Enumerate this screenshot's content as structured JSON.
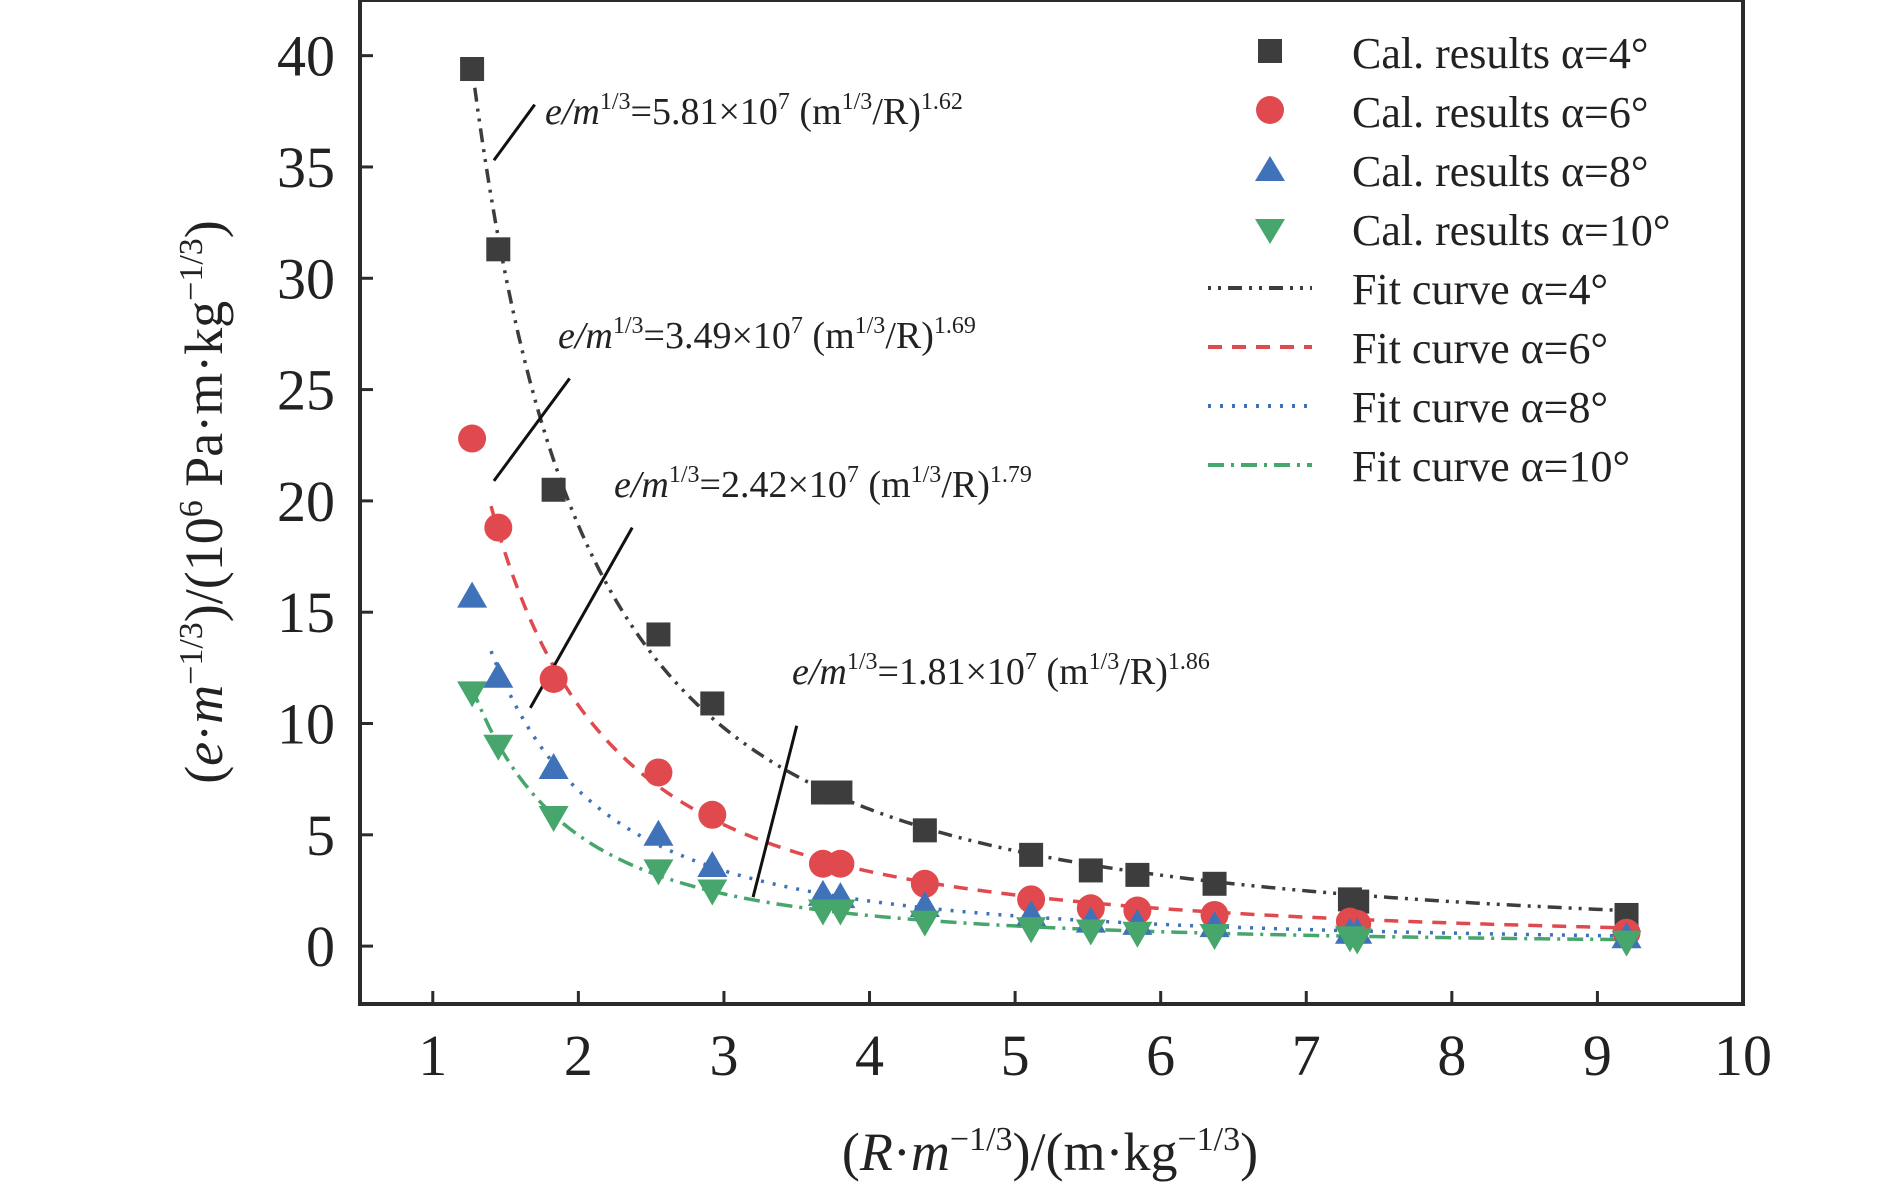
{
  "chart_data": {
    "type": "scatter",
    "title": "",
    "xlabel": "(R·m−1/3)/(m·kg−1/3)",
    "ylabel": "(e·m−1/3)/(106 Pa·m·kg−1/3)",
    "xlim": [
      0.5,
      10
    ],
    "ylim": [
      -2.6,
      42.5
    ],
    "xticks": [
      1,
      2,
      3,
      4,
      5,
      6,
      7,
      8,
      9,
      10
    ],
    "yticks": [
      0,
      5,
      10,
      15,
      20,
      25,
      30,
      35,
      40
    ],
    "grid": false,
    "legend_position": "top-right",
    "series": [
      {
        "name": "Cal. results α=4°",
        "color": "#3d3d3d",
        "marker": "square",
        "x": [
          1.27,
          1.45,
          1.83,
          2.55,
          2.92,
          3.68,
          3.8,
          4.38,
          5.11,
          5.52,
          5.84,
          6.37,
          7.3,
          7.35,
          9.2
        ],
        "y": [
          39.4,
          31.3,
          20.5,
          14.0,
          10.9,
          6.9,
          6.9,
          5.2,
          4.1,
          3.4,
          3.2,
          2.8,
          2.1,
          2.0,
          1.4
        ]
      },
      {
        "name": "Cal. results α=6°",
        "color": "#e04a4f",
        "marker": "circle",
        "x": [
          1.27,
          1.45,
          1.83,
          2.55,
          2.92,
          3.68,
          3.8,
          4.38,
          5.11,
          5.52,
          5.84,
          6.37,
          7.3,
          7.35,
          9.2
        ],
        "y": [
          22.8,
          18.8,
          12.0,
          7.8,
          5.9,
          3.7,
          3.7,
          2.8,
          2.1,
          1.7,
          1.6,
          1.4,
          1.1,
          1.0,
          0.6
        ]
      },
      {
        "name": "Cal. results α=8°",
        "color": "#3f72b8",
        "marker": "triangle-up",
        "x": [
          1.27,
          1.45,
          1.83,
          2.55,
          2.92,
          3.68,
          3.8,
          4.38,
          5.11,
          5.52,
          5.84,
          6.37,
          7.3,
          7.35,
          9.2
        ],
        "y": [
          15.7,
          12.1,
          8.0,
          5.0,
          3.6,
          2.3,
          2.2,
          1.8,
          1.4,
          1.1,
          1.0,
          0.9,
          0.6,
          0.6,
          0.4
        ]
      },
      {
        "name": "Cal. results α=10°",
        "color": "#47a66b",
        "marker": "triangle-down",
        "x": [
          1.27,
          1.45,
          1.83,
          2.55,
          2.92,
          3.68,
          3.8,
          4.38,
          5.11,
          5.52,
          5.84,
          6.37,
          7.3,
          7.35,
          9.2
        ],
        "y": [
          11.4,
          9.0,
          5.8,
          3.4,
          2.5,
          1.6,
          1.6,
          1.1,
          0.8,
          0.7,
          0.6,
          0.5,
          0.4,
          0.3,
          0.2
        ]
      }
    ],
    "fits": [
      {
        "name": "Fit curve α=4°",
        "color": "#3d3d3d",
        "dash": "3,7,3,7,14,7",
        "a": 58.1,
        "b": 1.62,
        "x_start": 1.27,
        "x_end": 9.2
      },
      {
        "name": "Fit curve α=6°",
        "color": "#e04a4f",
        "dash": "14,10",
        "a": 34.9,
        "b": 1.69,
        "x_start": 1.4,
        "x_end": 9.2
      },
      {
        "name": "Fit curve α=8°",
        "color": "#3f72b8",
        "dash": "3,9",
        "a": 24.2,
        "b": 1.79,
        "x_start": 1.4,
        "x_end": 9.2
      },
      {
        "name": "Fit curve α=10°",
        "color": "#47a66b",
        "dash": "16,7,3,7",
        "a": 18.1,
        "b": 1.86,
        "x_start": 1.27,
        "x_end": 9.2
      }
    ],
    "annotations": [
      {
        "text_prefix": "e/m",
        "sup1": "1/3",
        "text_mid": "=5.81×10",
        "sup2": "7",
        "text_paren": " (m",
        "sup3": "1/3",
        "text_tail": "/R)",
        "sup4": "1.62",
        "pointer": {
          "from": [
            1.7,
            37.8
          ],
          "to": [
            1.42,
            35.3
          ]
        }
      },
      {
        "text_prefix": "e/m",
        "sup1": "1/3",
        "text_mid": "=3.49×10",
        "sup2": "7",
        "text_paren": " (m",
        "sup3": "1/3",
        "text_tail": "/R)",
        "sup4": "1.69",
        "pointer": {
          "from": [
            1.94,
            25.5
          ],
          "to": [
            1.42,
            20.9
          ]
        }
      },
      {
        "text_prefix": "e/m",
        "sup1": "1/3",
        "text_mid": "=2.42×10",
        "sup2": "7",
        "text_paren": " (m",
        "sup3": "1/3",
        "text_tail": "/R)",
        "sup4": "1.79",
        "pointer": {
          "from": [
            2.37,
            18.8
          ],
          "to": [
            1.67,
            10.7
          ]
        }
      },
      {
        "text_prefix": "e/m",
        "sup1": "1/3",
        "text_mid": "=1.81×10",
        "sup2": "7",
        "text_paren": " (m",
        "sup3": "1/3",
        "text_tail": "/R)",
        "sup4": "1.86",
        "pointer": {
          "from": [
            3.5,
            9.9
          ],
          "to": [
            3.2,
            2.2
          ]
        }
      }
    ]
  }
}
